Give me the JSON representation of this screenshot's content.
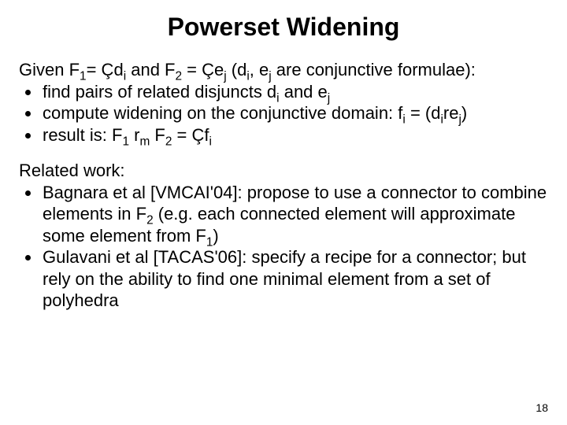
{
  "title": {
    "text": "Powerset Widening",
    "fontsize": 32,
    "color": "#000000"
  },
  "body_fontsize": 22,
  "given_prefix": "Given F",
  "given_mid1": "= Çd",
  "given_mid2": " and F",
  "given_mid3": " = Çe",
  "given_mid4": " (d",
  "given_mid5": ", e",
  "given_tail": " are conjunctive formulae):",
  "bullets1": {
    "b1_a": "find pairs of related disjuncts d",
    "b1_b": " and e",
    "b2_a": "compute widening on the conjunctive domain: f",
    "b2_b": " = (d",
    "b2_c": "re",
    "b2_d": ")",
    "b3_a": "result is:  F",
    "b3_b": " r",
    "b3_c": " F",
    "b3_d": " = Çf"
  },
  "related_label": "Related work:",
  "bullets2": {
    "r1_a": "Bagnara et al [VMCAI'04]: propose to use a connector to combine elements in F",
    "r1_b": " (e.g. each connected element will approximate some element from F",
    "r1_c": ")",
    "r2": "Gulavani et al [TACAS'06]: specify a recipe for a connector; but rely on the ability to find one minimal element from a set of polyhedra"
  },
  "sub": {
    "one": "1",
    "two": "2",
    "i": "i",
    "j": "j",
    "m": "m"
  },
  "pagenum": {
    "text": "18",
    "fontsize": 14,
    "color": "#000000"
  }
}
